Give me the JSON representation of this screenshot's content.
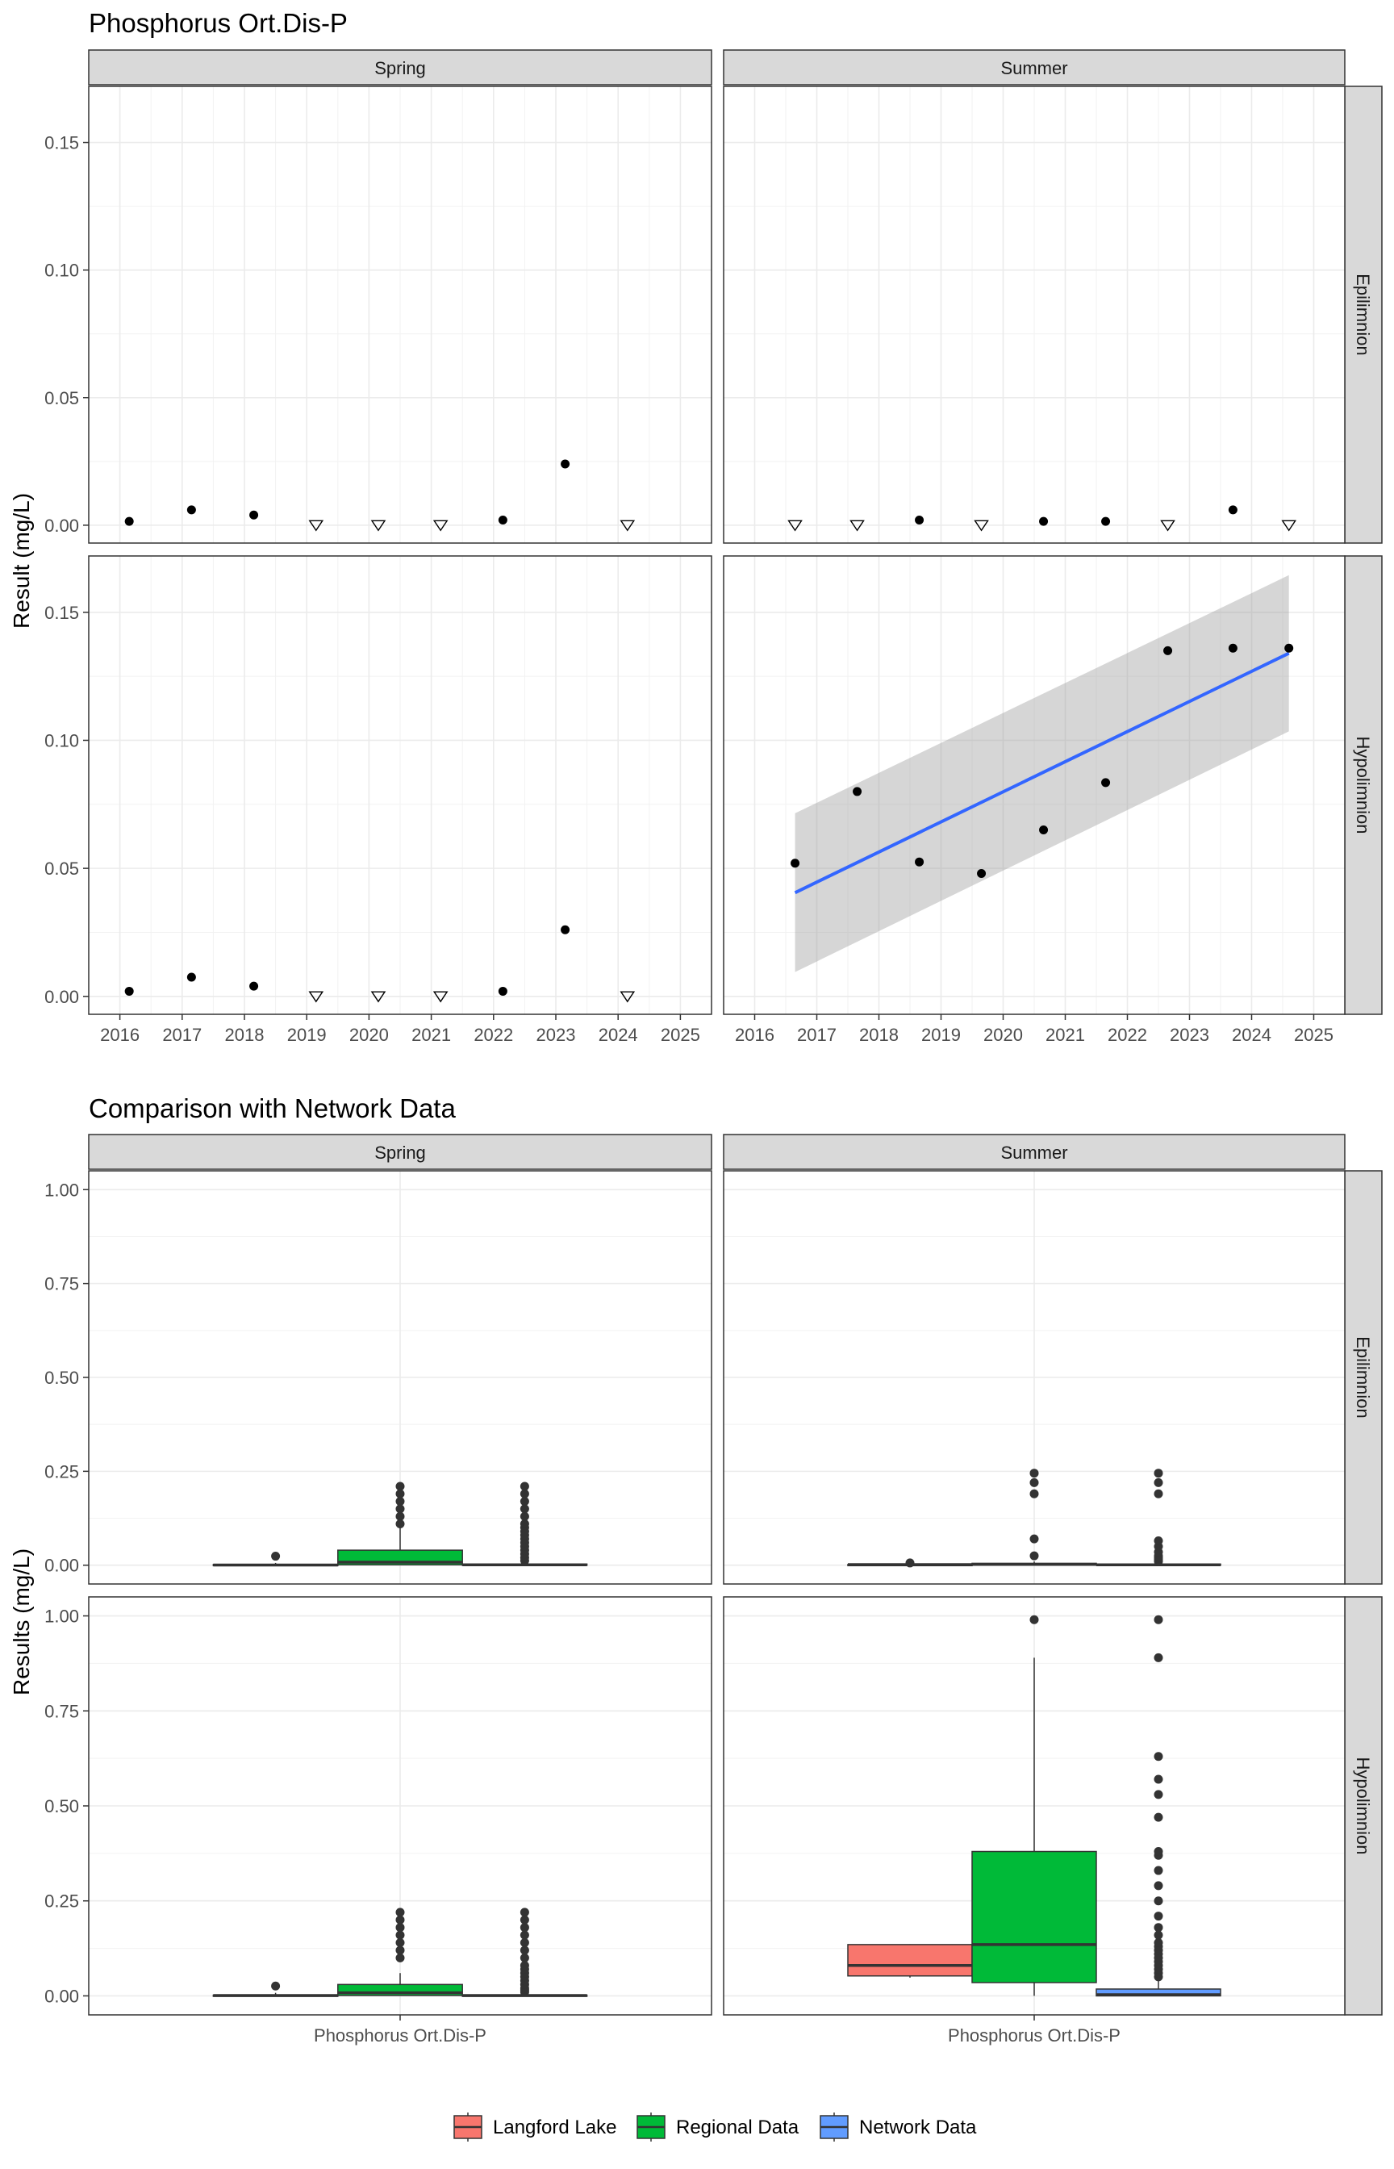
{
  "chart_data": [
    {
      "type": "scatter",
      "title": "Phosphorus Ort.Dis-P",
      "ylabel": "Result (mg/L)",
      "xlim": [
        2015.5,
        2025.5
      ],
      "ylim": [
        -0.007,
        0.172
      ],
      "x_ticks": [
        "2016",
        "2017",
        "2018",
        "2019",
        "2020",
        "2021",
        "2022",
        "2023",
        "2024",
        "2025"
      ],
      "y_ticks": [
        "0.00",
        "0.05",
        "0.10",
        "0.15"
      ],
      "columns": [
        "Spring",
        "Summer"
      ],
      "rows": [
        "Epilimnion",
        "Hypolimnion"
      ],
      "grid": true,
      "marker_legend": {
        "filled-circle": "detected",
        "open-triangle-down": "below detection"
      },
      "panels": [
        {
          "season": "Spring",
          "layer": "Epilimnion",
          "x": [
            2016.15,
            2017.15,
            2018.15,
            2019.15,
            2020.15,
            2021.15,
            2022.15,
            2023.15,
            2024.15
          ],
          "y": [
            0.0015,
            0.006,
            0.004,
            0.0,
            0.0,
            0.0,
            0.002,
            0.024,
            0.0
          ],
          "censored": [
            false,
            false,
            false,
            true,
            true,
            true,
            false,
            false,
            true
          ]
        },
        {
          "season": "Summer",
          "layer": "Epilimnion",
          "x": [
            2016.65,
            2017.65,
            2018.65,
            2019.65,
            2020.65,
            2021.65,
            2022.65,
            2023.7,
            2024.6
          ],
          "y": [
            0.0,
            0.0,
            0.002,
            0.0,
            0.0015,
            0.0015,
            0.0,
            0.006,
            0.0
          ],
          "censored": [
            true,
            true,
            false,
            true,
            false,
            false,
            true,
            false,
            true
          ]
        },
        {
          "season": "Spring",
          "layer": "Hypolimnion",
          "x": [
            2016.15,
            2017.15,
            2018.15,
            2019.15,
            2020.15,
            2021.15,
            2022.15,
            2023.15,
            2024.15
          ],
          "y": [
            0.002,
            0.0075,
            0.004,
            0.0,
            0.0,
            0.0,
            0.002,
            0.026,
            0.0
          ],
          "censored": [
            false,
            false,
            false,
            true,
            true,
            true,
            false,
            false,
            true
          ]
        },
        {
          "season": "Summer",
          "layer": "Hypolimnion",
          "x": [
            2016.65,
            2017.65,
            2018.65,
            2019.65,
            2020.65,
            2021.65,
            2022.65,
            2023.7,
            2024.6
          ],
          "y": [
            0.052,
            0.08,
            0.0525,
            0.048,
            0.065,
            0.0835,
            0.135,
            0.136,
            0.136
          ],
          "censored": [
            false,
            false,
            false,
            false,
            false,
            false,
            false,
            false,
            false
          ],
          "trend": {
            "x": [
              2016.65,
              2024.6
            ],
            "fit": [
              0.0405,
              0.134
            ],
            "ci_lower": [
              0.0095,
              0.1035
            ],
            "ci_upper": [
              0.0715,
              0.1645
            ]
          }
        }
      ]
    },
    {
      "type": "box",
      "title": "Comparison with Network Data",
      "ylabel": "Results (mg/L)",
      "xlabel_ticks": [
        "Phosphorus Ort.Dis-P"
      ],
      "ylim": [
        -0.05,
        1.05
      ],
      "y_ticks": [
        "0.00",
        "0.25",
        "0.50",
        "0.75",
        "1.00"
      ],
      "columns": [
        "Spring",
        "Summer"
      ],
      "rows": [
        "Epilimnion",
        "Hypolimnion"
      ],
      "legend": {
        "position": "bottom",
        "entries": [
          {
            "name": "Langford Lake",
            "color": "#F8766D"
          },
          {
            "name": "Regional Data",
            "color": "#00BA38"
          },
          {
            "name": "Network Data",
            "color": "#619CFF"
          }
        ]
      },
      "panels": [
        {
          "season": "Spring",
          "layer": "Epilimnion",
          "boxes": [
            {
              "group": "Langford Lake",
              "min": 0.0,
              "q1": 0.0,
              "median": 0.0005,
              "q3": 0.002,
              "max": 0.006,
              "outliers": [
                0.024
              ]
            },
            {
              "group": "Regional Data",
              "min": 0.0,
              "q1": 0.001,
              "median": 0.008,
              "q3": 0.04,
              "max": 0.1,
              "outliers": [
                0.11,
                0.13,
                0.15,
                0.17,
                0.19,
                0.21
              ]
            },
            {
              "group": "Network Data",
              "min": 0.0,
              "q1": 0.0,
              "median": 0.001,
              "q3": 0.003,
              "max": 0.008,
              "outliers": [
                0.012,
                0.02,
                0.03,
                0.04,
                0.05,
                0.06,
                0.07,
                0.08,
                0.09,
                0.1,
                0.11,
                0.13,
                0.15,
                0.17,
                0.19,
                0.21
              ]
            }
          ]
        },
        {
          "season": "Summer",
          "layer": "Epilimnion",
          "boxes": [
            {
              "group": "Langford Lake",
              "min": 0.0,
              "q1": 0.0,
              "median": 0.0015,
              "q3": 0.002,
              "max": 0.003,
              "outliers": [
                0.006
              ]
            },
            {
              "group": "Regional Data",
              "min": 0.0,
              "q1": 0.0,
              "median": 0.002,
              "q3": 0.005,
              "max": 0.01,
              "outliers": [
                0.025,
                0.07,
                0.19,
                0.22,
                0.245
              ]
            },
            {
              "group": "Network Data",
              "min": 0.0,
              "q1": 0.0,
              "median": 0.001,
              "q3": 0.003,
              "max": 0.008,
              "outliers": [
                0.01,
                0.015,
                0.02,
                0.025,
                0.035,
                0.05,
                0.065,
                0.19,
                0.22,
                0.245
              ]
            }
          ]
        },
        {
          "season": "Spring",
          "layer": "Hypolimnion",
          "boxes": [
            {
              "group": "Langford Lake",
              "min": 0.0,
              "q1": 0.0,
              "median": 0.001,
              "q3": 0.002,
              "max": 0.008,
              "outliers": [
                0.026
              ]
            },
            {
              "group": "Regional Data",
              "min": 0.0,
              "q1": 0.001,
              "median": 0.008,
              "q3": 0.03,
              "max": 0.06,
              "outliers": [
                0.1,
                0.12,
                0.14,
                0.16,
                0.18,
                0.2,
                0.22
              ]
            },
            {
              "group": "Network Data",
              "min": 0.0,
              "q1": 0.0,
              "median": 0.001,
              "q3": 0.002,
              "max": 0.006,
              "outliers": [
                0.01,
                0.015,
                0.02,
                0.03,
                0.04,
                0.05,
                0.06,
                0.07,
                0.08,
                0.1,
                0.12,
                0.14,
                0.16,
                0.18,
                0.2,
                0.22
              ]
            }
          ]
        },
        {
          "season": "Summer",
          "layer": "Hypolimnion",
          "boxes": [
            {
              "group": "Langford Lake",
              "min": 0.048,
              "q1": 0.0525,
              "median": 0.08,
              "q3": 0.135,
              "max": 0.136,
              "outliers": []
            },
            {
              "group": "Regional Data",
              "min": 0.0,
              "q1": 0.035,
              "median": 0.135,
              "q3": 0.38,
              "max": 0.89,
              "outliers": [
                0.99
              ]
            },
            {
              "group": "Network Data",
              "min": 0.0,
              "q1": 0.0,
              "median": 0.003,
              "q3": 0.018,
              "max": 0.04,
              "outliers": [
                0.05,
                0.06,
                0.07,
                0.08,
                0.09,
                0.1,
                0.11,
                0.12,
                0.13,
                0.14,
                0.16,
                0.18,
                0.21,
                0.25,
                0.29,
                0.33,
                0.37,
                0.38,
                0.47,
                0.53,
                0.57,
                0.63,
                0.89,
                0.99
              ]
            }
          ]
        }
      ]
    }
  ]
}
